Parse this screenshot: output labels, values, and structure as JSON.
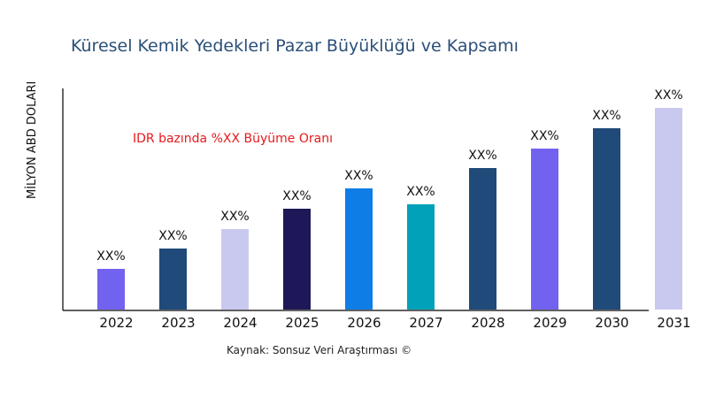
{
  "chart_data": {
    "type": "bar",
    "title": "Küresel Kemik Yedekleri Pazar Büyüklüğü ve Kapsamı",
    "ylabel": "MİLYON ABD DOLARI",
    "xlabel": "",
    "annotation": "IDR bazında %XX Büyüme Oranı",
    "source": "Kaynak: Sonsuz Veri Araştırması ©",
    "categories": [
      "2022",
      "2023",
      "2024",
      "2025",
      "2026",
      "2027",
      "2028",
      "2029",
      "2030",
      "2031"
    ],
    "values": [
      46,
      69,
      91,
      114,
      137,
      119,
      160,
      182,
      205,
      228
    ],
    "data_labels": [
      "XX%",
      "XX%",
      "XX%",
      "XX%",
      "XX%",
      "XX%",
      "XX%",
      "XX%",
      "XX%",
      "XX%"
    ],
    "colors": [
      "#7262f0",
      "#1f4a7a",
      "#c9c9f0",
      "#1e1858",
      "#0f7de6",
      "#01a1b9",
      "#1f4a7a",
      "#7262f0",
      "#1f4a7a",
      "#c9c9f0"
    ],
    "ylim": [
      0,
      250
    ],
    "grid": false,
    "y_ticks_shown": false
  }
}
